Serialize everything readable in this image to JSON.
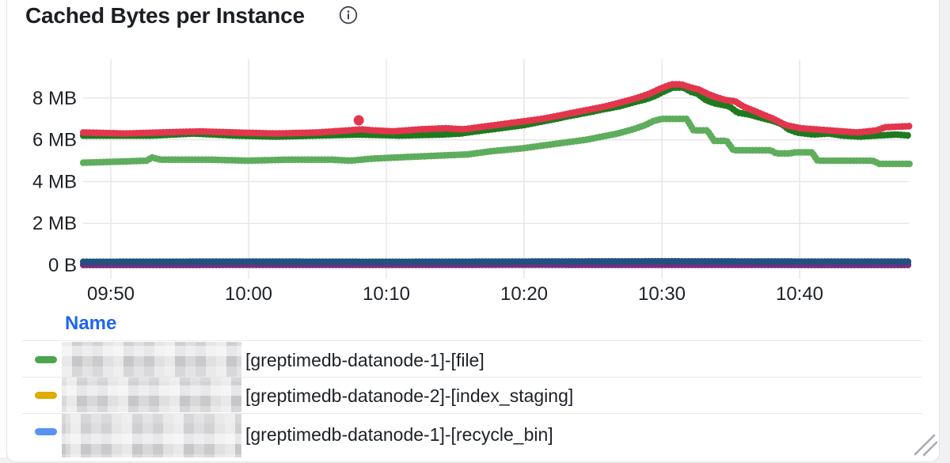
{
  "panel": {
    "title": "Cached Bytes per Instance",
    "info_icon": "info-circle-icon"
  },
  "legend": {
    "header": "Name",
    "rows": [
      {
        "swatch_color": "#4CA64C",
        "redacted_prefix": true,
        "label": "[greptimedb-datanode-1]-[file]"
      },
      {
        "swatch_color": "#E0AB00",
        "redacted_prefix": true,
        "label": "[greptimedb-datanode-2]-[index_staging]"
      },
      {
        "swatch_color": "#5A91F5",
        "redacted_prefix": true,
        "label": "[greptimedb-datanode-1]-[recycle_bin]"
      }
    ]
  },
  "chart_data": {
    "type": "line",
    "title": "Cached Bytes per Instance",
    "grid": true,
    "legend_position": "bottom-table",
    "x_axis": {
      "unit": "time",
      "range_minutes_from_0950": [
        -2,
        58
      ],
      "ticks": [
        {
          "min": 0,
          "label": "09:50"
        },
        {
          "min": 10,
          "label": "10:00"
        },
        {
          "min": 20,
          "label": "10:10"
        },
        {
          "min": 30,
          "label": "10:20"
        },
        {
          "min": 40,
          "label": "10:30"
        },
        {
          "min": 50,
          "label": "10:40"
        }
      ]
    },
    "y_axis": {
      "unit": "bytes",
      "range_mb": [
        0,
        9.5
      ],
      "ticks": [
        {
          "mb": 0,
          "label": "0 B"
        },
        {
          "mb": 2,
          "label": "2 MB"
        },
        {
          "mb": 4,
          "label": "4 MB"
        },
        {
          "mb": 6,
          "label": "6 MB"
        },
        {
          "mb": 8,
          "label": "8 MB"
        }
      ]
    },
    "style": {
      "grid_color": "#e7e7ea",
      "axis_text_color": "#1d2126"
    },
    "series": [
      {
        "name": "purple-flat-near-zero",
        "color": "#7B2C80",
        "points": [
          [
            -2,
            0.01
          ],
          [
            30,
            0.02
          ],
          [
            58,
            0.01
          ]
        ]
      },
      {
        "name": "navy-flat-near-zero",
        "color": "#20517F",
        "points": [
          [
            -2,
            0.16
          ],
          [
            10,
            0.17
          ],
          [
            20,
            0.16
          ],
          [
            30,
            0.17
          ],
          [
            40,
            0.18
          ],
          [
            50,
            0.17
          ],
          [
            58,
            0.17
          ]
        ]
      },
      {
        "name": "light-green",
        "color": "#5EAD5C",
        "points": [
          [
            -2,
            4.9
          ],
          [
            0.5,
            4.95
          ],
          [
            2.6,
            5.0
          ],
          [
            3,
            5.15
          ],
          [
            3.6,
            5.05
          ],
          [
            7,
            5.05
          ],
          [
            10,
            5.0
          ],
          [
            13,
            5.05
          ],
          [
            16,
            5.05
          ],
          [
            17.4,
            5.0
          ],
          [
            19,
            5.1
          ],
          [
            20.7,
            5.15
          ],
          [
            22.4,
            5.2
          ],
          [
            24.1,
            5.25
          ],
          [
            25.9,
            5.3
          ],
          [
            27.6,
            5.45
          ],
          [
            30,
            5.6
          ],
          [
            32.2,
            5.8
          ],
          [
            34.5,
            6.0
          ],
          [
            36.8,
            6.3
          ],
          [
            37.9,
            6.5
          ],
          [
            38.8,
            6.7
          ],
          [
            39.4,
            6.9
          ],
          [
            40,
            7.0
          ],
          [
            41.8,
            7.0
          ],
          [
            42.3,
            6.45
          ],
          [
            43.3,
            6.45
          ],
          [
            43.8,
            5.95
          ],
          [
            44.7,
            5.95
          ],
          [
            45.2,
            5.5
          ],
          [
            47.9,
            5.5
          ],
          [
            48.3,
            5.35
          ],
          [
            49.3,
            5.35
          ],
          [
            49.7,
            5.4
          ],
          [
            50.9,
            5.4
          ],
          [
            51.3,
            5.0
          ],
          [
            55.3,
            5.0
          ],
          [
            55.8,
            4.85
          ],
          [
            58,
            4.85
          ]
        ]
      },
      {
        "name": "dark-green",
        "color": "#1E7A1F",
        "points": [
          [
            -2,
            6.2
          ],
          [
            3,
            6.2
          ],
          [
            6,
            6.3
          ],
          [
            9,
            6.2
          ],
          [
            12,
            6.15
          ],
          [
            15,
            6.2
          ],
          [
            18,
            6.25
          ],
          [
            21,
            6.2
          ],
          [
            24,
            6.25
          ],
          [
            25.4,
            6.3
          ],
          [
            26.5,
            6.4
          ],
          [
            27.7,
            6.5
          ],
          [
            28.8,
            6.6
          ],
          [
            30,
            6.7
          ],
          [
            31.1,
            6.85
          ],
          [
            32.3,
            7.0
          ],
          [
            33.4,
            7.15
          ],
          [
            34.6,
            7.3
          ],
          [
            35.7,
            7.45
          ],
          [
            36.9,
            7.6
          ],
          [
            38,
            7.8
          ],
          [
            38.9,
            7.95
          ],
          [
            39.5,
            8.1
          ],
          [
            40.1,
            8.3
          ],
          [
            40.8,
            8.5
          ],
          [
            41.6,
            8.5
          ],
          [
            42.1,
            8.3
          ],
          [
            42.6,
            8.2
          ],
          [
            43.2,
            7.9
          ],
          [
            43.8,
            7.75
          ],
          [
            44.9,
            7.6
          ],
          [
            45.5,
            7.3
          ],
          [
            46.4,
            7.2
          ],
          [
            47.2,
            7.05
          ],
          [
            48.1,
            6.9
          ],
          [
            48.7,
            6.75
          ],
          [
            49.2,
            6.5
          ],
          [
            49.8,
            6.35
          ],
          [
            51,
            6.25
          ],
          [
            52.1,
            6.3
          ],
          [
            53.1,
            6.2
          ],
          [
            54.4,
            6.15
          ],
          [
            55.6,
            6.2
          ],
          [
            57,
            6.25
          ],
          [
            58,
            6.2
          ]
        ]
      },
      {
        "name": "red",
        "color": "#E2364D",
        "points": [
          [
            -2,
            6.35
          ],
          [
            1,
            6.3
          ],
          [
            3.5,
            6.35
          ],
          [
            6.5,
            6.4
          ],
          [
            9,
            6.35
          ],
          [
            12,
            6.3
          ],
          [
            15,
            6.35
          ],
          [
            17.3,
            6.45
          ],
          [
            18.2,
            6.5
          ],
          [
            19,
            6.45
          ],
          [
            20.5,
            6.4
          ],
          [
            22.5,
            6.5
          ],
          [
            24.3,
            6.55
          ],
          [
            25.6,
            6.5
          ],
          [
            26.7,
            6.6
          ],
          [
            27.9,
            6.7
          ],
          [
            29,
            6.8
          ],
          [
            30.2,
            6.9
          ],
          [
            31.3,
            7.0
          ],
          [
            32.5,
            7.15
          ],
          [
            33.6,
            7.3
          ],
          [
            34.8,
            7.45
          ],
          [
            35.9,
            7.6
          ],
          [
            37.1,
            7.8
          ],
          [
            38.2,
            8.0
          ],
          [
            39.1,
            8.2
          ],
          [
            39.9,
            8.45
          ],
          [
            40.7,
            8.65
          ],
          [
            41.4,
            8.65
          ],
          [
            42.1,
            8.5
          ],
          [
            42.7,
            8.4
          ],
          [
            43.3,
            8.2
          ],
          [
            43.9,
            8.05
          ],
          [
            44.6,
            7.9
          ],
          [
            45.3,
            7.85
          ],
          [
            45.9,
            7.6
          ],
          [
            47,
            7.3
          ],
          [
            48.1,
            7.0
          ],
          [
            49,
            6.7
          ],
          [
            50.1,
            6.55
          ],
          [
            52.1,
            6.45
          ],
          [
            54.2,
            6.35
          ],
          [
            55.6,
            6.45
          ],
          [
            56.2,
            6.6
          ],
          [
            58,
            6.65
          ]
        ]
      }
    ],
    "outliers": [
      {
        "series": "red",
        "min": 18,
        "mb": 6.93,
        "color": "#E2364D"
      }
    ]
  }
}
